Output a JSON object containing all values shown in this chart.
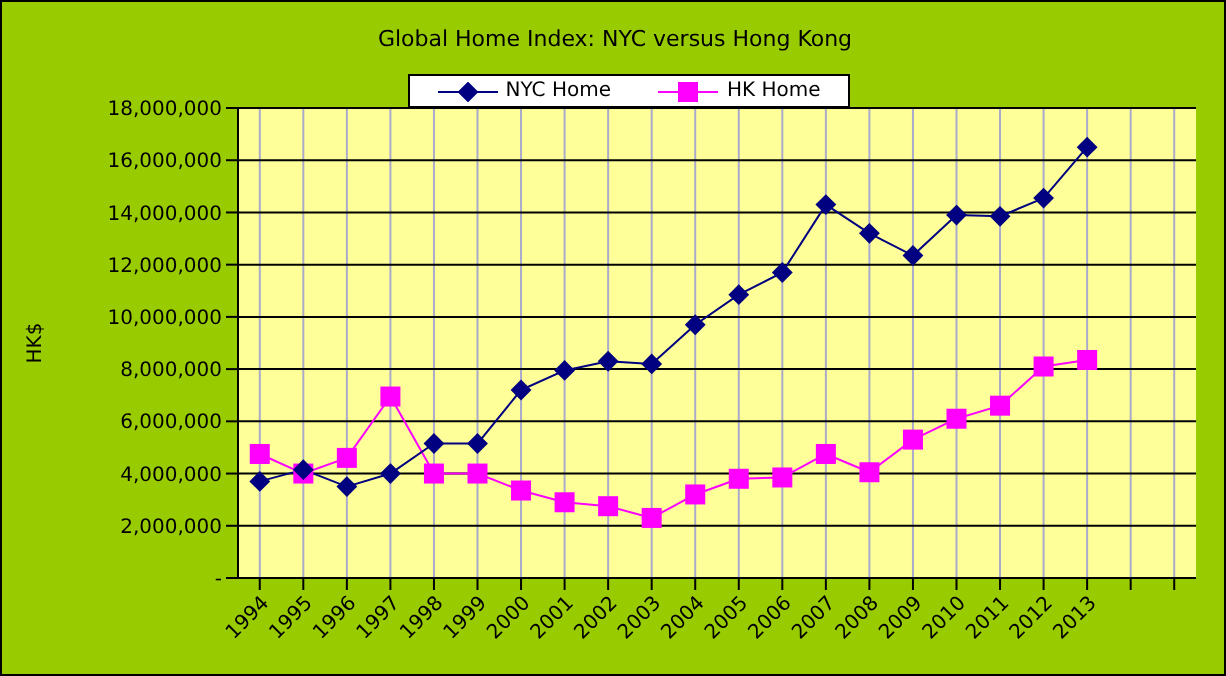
{
  "chart_data": {
    "type": "line",
    "title": "Global Home Index: NYC versus Hong Kong",
    "ylabel": "HK$",
    "categories": [
      "1994",
      "1995",
      "1996",
      "1997",
      "1998",
      "1999",
      "2000",
      "2001",
      "2002",
      "2003",
      "2004",
      "2005",
      "2006",
      "2007",
      "2008",
      "2009",
      "2010",
      "2011",
      "2012",
      "2013",
      null,
      null
    ],
    "series": [
      {
        "name": "NYC Home",
        "color": "#000080",
        "marker": "diamond",
        "values": [
          3700000,
          4150000,
          3500000,
          4000000,
          5150000,
          5150000,
          7200000,
          7950000,
          8300000,
          8200000,
          9700000,
          10850000,
          11700000,
          14300000,
          13200000,
          12350000,
          13900000,
          13850000,
          14550000,
          16500000,
          null,
          null
        ]
      },
      {
        "name": "HK Home",
        "color": "#ff00ff",
        "marker": "square",
        "values": [
          4750000,
          4000000,
          4600000,
          6950000,
          4000000,
          4000000,
          3350000,
          2900000,
          2750000,
          2300000,
          3200000,
          3800000,
          3850000,
          4750000,
          4050000,
          5300000,
          6100000,
          6600000,
          8100000,
          8350000,
          null,
          null
        ]
      }
    ],
    "ylim": [
      0,
      18000000
    ],
    "yticks": [
      {
        "value": 0,
        "label": "-"
      },
      {
        "value": 2000000,
        "label": "2,000,000"
      },
      {
        "value": 4000000,
        "label": "4,000,000"
      },
      {
        "value": 6000000,
        "label": "6,000,000"
      },
      {
        "value": 8000000,
        "label": "8,000,000"
      },
      {
        "value": 10000000,
        "label": "10,000,000"
      },
      {
        "value": 12000000,
        "label": "12,000,000"
      },
      {
        "value": 14000000,
        "label": "14,000,000"
      },
      {
        "value": 16000000,
        "label": "16,000,000"
      },
      {
        "value": 18000000,
        "label": "18,000,000"
      }
    ],
    "grid": true,
    "legend": "top",
    "line_style": "solid"
  }
}
